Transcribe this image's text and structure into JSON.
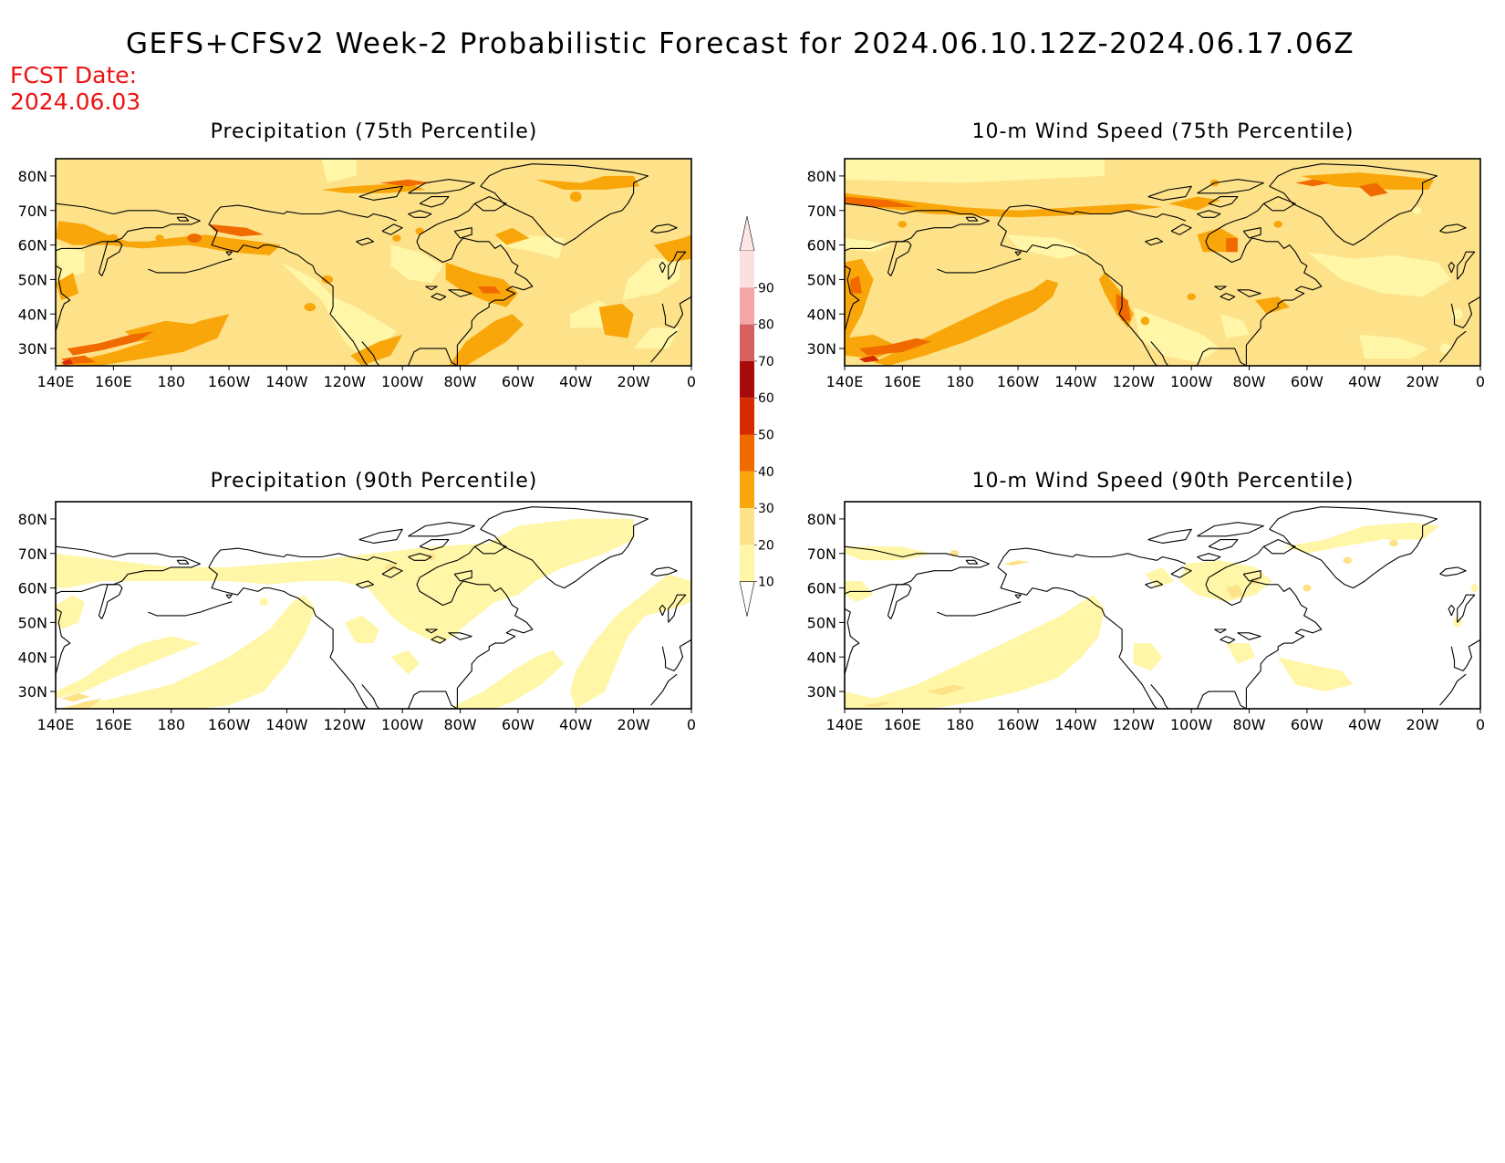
{
  "title": "GEFS+CFSv2 Week-2 Probabilistic Forecast for 2024.06.10.12Z-2024.06.17.06Z",
  "fcst_date_label": "FCST Date:",
  "fcst_date_value": "2024.06.03",
  "colors": {
    "coast": "#000000",
    "fcst_text": "#ee1111",
    "c10": "#fff6a8",
    "c20": "#fde28a",
    "c30": "#f9a60a",
    "c40": "#f06a00",
    "c50": "#d82a00",
    "c60": "#a80a0a",
    "c70": "#d66060",
    "c80": "#f4a6a6",
    "c90": "#fce0e0"
  },
  "colorbar": {
    "levels": [
      "10",
      "20",
      "30",
      "40",
      "50",
      "60",
      "70",
      "80",
      "90"
    ]
  },
  "panels": [
    {
      "title": "Precipitation (75th Percentile)",
      "lat_labels": [
        "80N",
        "70N",
        "60N",
        "50N",
        "40N",
        "30N"
      ],
      "lon_labels": [
        "140E",
        "160E",
        "180",
        "160W",
        "140W",
        "120W",
        "100W",
        "80W",
        "60W",
        "40W",
        "20W",
        "0"
      ]
    },
    {
      "title": "10-m Wind Speed (75th Percentile)",
      "lat_labels": [
        "80N",
        "70N",
        "60N",
        "50N",
        "40N",
        "30N"
      ],
      "lon_labels": [
        "140E",
        "160E",
        "180",
        "160W",
        "140W",
        "120W",
        "100W",
        "80W",
        "60W",
        "40W",
        "20W",
        "0"
      ]
    },
    {
      "title": "Precipitation (90th Percentile)",
      "lat_labels": [
        "80N",
        "70N",
        "60N",
        "50N",
        "40N",
        "30N"
      ],
      "lon_labels": [
        "140E",
        "160E",
        "180",
        "160W",
        "140W",
        "120W",
        "100W",
        "80W",
        "60W",
        "40W",
        "20W",
        "0"
      ]
    },
    {
      "title": "10-m Wind Speed (90th Percentile)",
      "lat_labels": [
        "80N",
        "70N",
        "60N",
        "50N",
        "40N",
        "30N"
      ],
      "lon_labels": [
        "140E",
        "160E",
        "180",
        "160W",
        "140W",
        "120W",
        "100W",
        "80W",
        "60W",
        "40W",
        "20W",
        "0"
      ]
    }
  ]
}
